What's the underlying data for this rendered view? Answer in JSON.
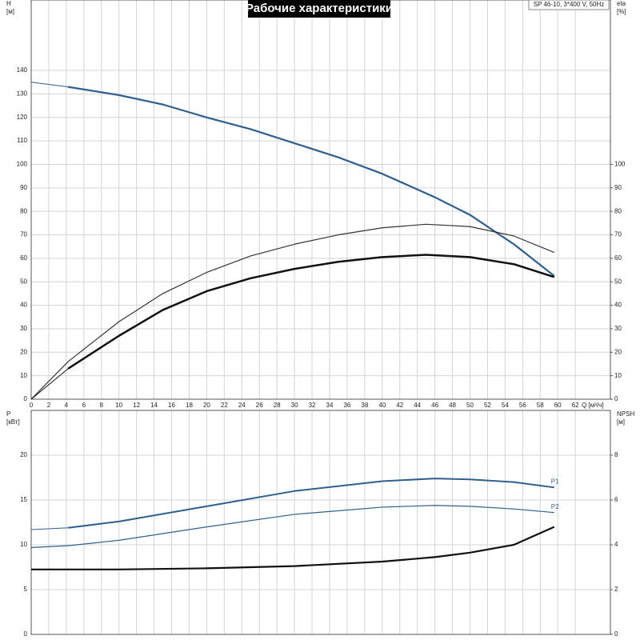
{
  "chart_data": [
    {
      "type": "line",
      "title": "Рабочие характеристики",
      "subtitle": "SP 46-10, 3*400 V, 50Hz",
      "x_label": "Q [м³/ч]",
      "y_label": "H",
      "y_unit": "[м]",
      "y2_label": "eta",
      "y2_unit": "[%]",
      "xlim": [
        0,
        66
      ],
      "xticks": [
        0,
        2,
        4,
        6,
        8,
        10,
        12,
        14,
        16,
        18,
        20,
        22,
        24,
        26,
        28,
        30,
        32,
        34,
        36,
        38,
        40,
        42,
        44,
        46,
        48,
        50,
        52,
        54,
        56,
        58,
        60,
        62
      ],
      "ylim": [
        0,
        170
      ],
      "yticks": [
        0,
        10,
        20,
        30,
        40,
        50,
        60,
        70,
        80,
        90,
        100,
        110,
        120,
        130,
        140
      ],
      "y2lim": [
        0,
        170
      ],
      "y2ticks": [
        0,
        10,
        20,
        30,
        40,
        50,
        60,
        70,
        80,
        90,
        100
      ],
      "grid": true,
      "series": [
        {
          "color": "#2e5f8f",
          "width": 1,
          "x": [
            0,
            4.2
          ],
          "values": [
            135,
            133
          ]
        },
        {
          "color": "#2e5f8f",
          "width": 2.2,
          "x": [
            4.2,
            10,
            15,
            20,
            25,
            30,
            35,
            40,
            46,
            50,
            55,
            59.6
          ],
          "values": [
            133,
            129.5,
            125.5,
            120,
            115,
            109,
            103,
            96,
            86,
            78.5,
            66,
            52.5
          ]
        },
        {
          "color": "#333333",
          "width": 1.2,
          "axis": "y2",
          "x": [
            0,
            4.2,
            10,
            15,
            20,
            25,
            30,
            35,
            40,
            45,
            50,
            55,
            59.6
          ],
          "values": [
            0,
            16,
            33,
            45,
            54,
            61,
            66,
            70,
            73,
            74.5,
            73.5,
            69.5,
            62.5
          ]
        },
        {
          "color": "#111111",
          "width": 1,
          "axis": "y2",
          "x": [
            0,
            4.2
          ],
          "values": [
            0,
            13
          ]
        },
        {
          "color": "#111111",
          "width": 2.5,
          "axis": "y2",
          "x": [
            4.2,
            10,
            15,
            20,
            25,
            30,
            35,
            40,
            45,
            50,
            55,
            59.6
          ],
          "values": [
            13,
            27,
            38,
            46,
            51.5,
            55.5,
            58.5,
            60.5,
            61.5,
            60.5,
            57.5,
            52
          ]
        }
      ]
    },
    {
      "type": "line",
      "y_label": "P",
      "y_unit": "[кВт]",
      "y2_label": "NPSH",
      "y2_unit": "[м]",
      "xlim": [
        0,
        66
      ],
      "ylim": [
        0,
        25
      ],
      "yticks": [
        0,
        5,
        10,
        15,
        20
      ],
      "y2lim": [
        0,
        10
      ],
      "y2ticks": [
        0,
        2,
        4,
        6,
        8
      ],
      "grid": true,
      "series": [
        {
          "color": "#2e5f8f",
          "width": 1,
          "x": [
            0,
            4.2
          ],
          "values": [
            11.7,
            11.9
          ]
        },
        {
          "name": "P1",
          "color": "#2e5f8f",
          "width": 2,
          "x": [
            4.2,
            10,
            20,
            30,
            40,
            46,
            50,
            55,
            59.6
          ],
          "values": [
            11.9,
            12.6,
            14.3,
            16.0,
            17.1,
            17.4,
            17.3,
            17.0,
            16.4
          ]
        },
        {
          "name": "P2",
          "color": "#2e5f8f",
          "width": 1.2,
          "x": [
            0,
            4.2,
            10,
            20,
            30,
            40,
            46,
            50,
            55,
            59.6
          ],
          "values": [
            9.7,
            9.9,
            10.5,
            12.0,
            13.4,
            14.2,
            14.4,
            14.3,
            14.0,
            13.6
          ]
        },
        {
          "color": "#111111",
          "width": 2.2,
          "axis": "y2",
          "x": [
            0,
            10,
            20,
            30,
            40,
            46,
            50,
            55,
            59.6
          ],
          "values": [
            2.9,
            2.9,
            2.95,
            3.05,
            3.25,
            3.45,
            3.65,
            4.0,
            4.8
          ]
        }
      ]
    }
  ]
}
